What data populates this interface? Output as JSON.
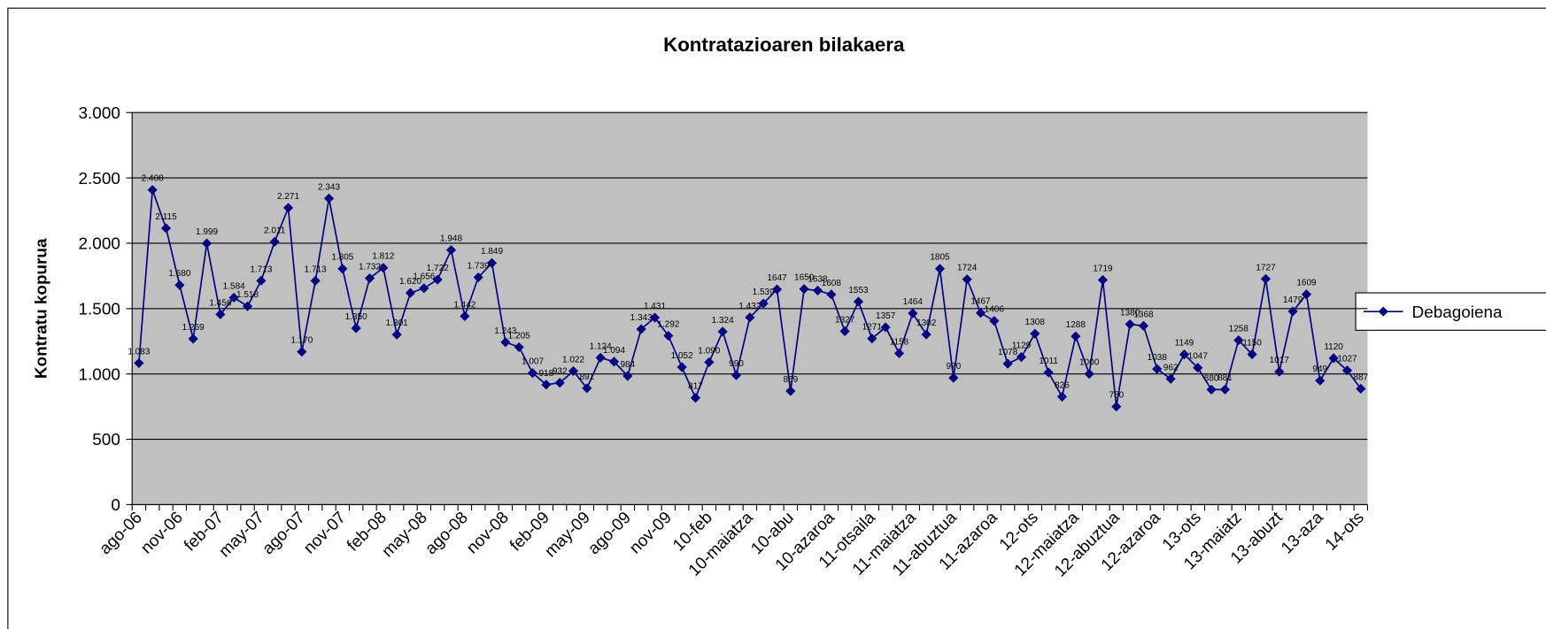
{
  "chart_data": {
    "type": "line",
    "title": "Kontratazioaren bilakaera",
    "y_label": "Kontratu kopurua",
    "categories": [
      "ago-06",
      null,
      null,
      "nov-06",
      null,
      null,
      "feb-07",
      null,
      null,
      "may-07",
      null,
      null,
      "ago-07",
      null,
      null,
      "nov-07",
      null,
      null,
      "feb-08",
      null,
      null,
      "may-08",
      null,
      null,
      "ago-08",
      null,
      null,
      "nov-08",
      null,
      null,
      "feb-09",
      null,
      null,
      "may-09",
      null,
      null,
      "ago-09",
      null,
      null,
      "nov-09",
      null,
      null,
      "10-feb",
      null,
      null,
      "10-maiatza",
      null,
      null,
      "10-abu",
      null,
      null,
      "10-azaroa",
      null,
      null,
      "11-otsaila",
      null,
      null,
      "11-maiatza",
      null,
      null,
      "11-abuztua",
      null,
      null,
      "11-azaroa",
      null,
      null,
      "12-ots",
      null,
      null,
      "12-maiatza",
      null,
      null,
      "12-abuztua",
      null,
      null,
      "12-azaroa",
      null,
      null,
      "13-ots",
      null,
      null,
      "13-maiatz",
      null,
      null,
      "13-abuzt",
      null,
      null,
      "13-aza",
      null,
      null,
      "14-ots"
    ],
    "series": [
      {
        "name": "Debagoiena",
        "color": "#000080",
        "values": [
          1083,
          2408,
          2115,
          1680,
          1269,
          1999,
          1456,
          1584,
          1518,
          1713,
          2011,
          2271,
          1170,
          1713,
          2343,
          1805,
          1350,
          1732,
          1812,
          1301,
          1620,
          1656,
          1722,
          1948,
          1442,
          1739,
          1849,
          1243,
          1205,
          1007,
          918,
          932,
          1022,
          891,
          1124,
          1094,
          984,
          1343,
          1431,
          1292,
          1052,
          817,
          1090,
          1324,
          990,
          1432,
          1539,
          1647,
          869,
          1650,
          1638,
          1608,
          1327,
          1553,
          1271,
          1357,
          1158,
          1464,
          1302,
          1805,
          970,
          1724,
          1467,
          1406,
          1078,
          1129,
          1308,
          1011,
          826,
          1288,
          1000,
          1719,
          750,
          1380,
          1368,
          1038,
          962,
          1149,
          1047,
          880,
          881,
          1258,
          1150,
          1727,
          1017,
          1479,
          1609,
          949,
          1120,
          1027,
          887
        ],
        "value_labels": [
          "1.083",
          "2.408",
          "2.115",
          "1.680",
          "1.269",
          "1.999",
          "1.456",
          "1.584",
          "1.518",
          "1.713",
          "2.011",
          "2.271",
          "1.170",
          "1.713",
          "2.343",
          "1.805",
          "1.350",
          "1.732",
          "1.812",
          "1.301",
          "1.620",
          "1.656",
          "1.722",
          "1.948",
          "1.442",
          "1.739",
          "1.849",
          "1.243",
          "1.205",
          "1.007",
          "918",
          "932",
          "1.022",
          "891",
          "1.124",
          "1.094",
          "984",
          "1.343",
          "1.431",
          "1.292",
          "1.052",
          "817",
          "1.090",
          "1.324",
          "990",
          "1.432",
          "1.539",
          "1647",
          "869",
          "1650",
          "1638",
          "1608",
          "1327",
          "1553",
          "1271",
          "1357",
          "1158",
          "1464",
          "1302",
          "1805",
          "970",
          "1724",
          "1467",
          "1406",
          "1078",
          "1129",
          "1308",
          "1011",
          "826",
          "1288",
          "1000",
          "1719",
          "750",
          "1380",
          "1368",
          "1038",
          "962",
          "1149",
          "1047",
          "880",
          "881",
          "1258",
          "1150",
          "1727",
          "1017",
          "1479",
          "1609",
          "949",
          "1120",
          "1027",
          "887"
        ]
      }
    ],
    "ylim": [
      0,
      3000
    ],
    "yticks": [
      0,
      500,
      {
        "value": 1000,
        "label": "1.000"
      },
      {
        "value": 1500,
        "label": "1.500"
      },
      {
        "value": 2000,
        "label": "2.000"
      },
      {
        "value": 2500,
        "label": "2.500"
      },
      {
        "value": 3000,
        "label": "3.000"
      }
    ],
    "grid": true,
    "legend": "right"
  }
}
